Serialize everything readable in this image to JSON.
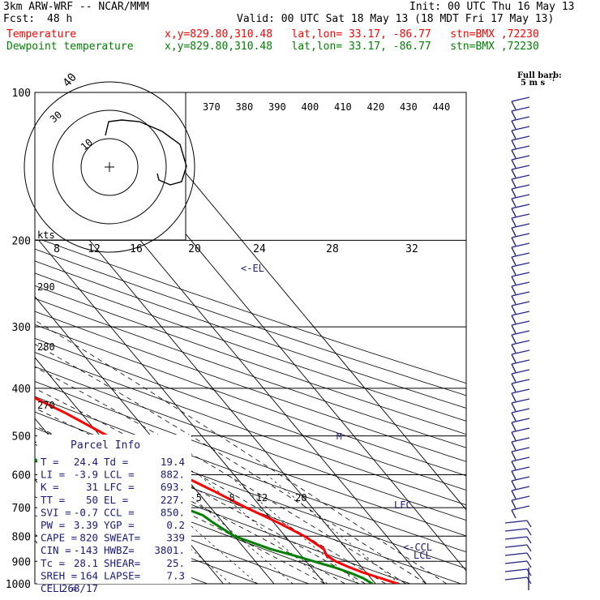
{
  "header": {
    "model": "3km ARW-WRF -- NCAR/MMM",
    "init": "Init: 00 UTC Thu 16 May 13",
    "fcst_label": "Fcst:",
    "fcst_value": "48 h",
    "valid": "Valid: 00 UTC Sat 18 May 13 (18 MDT Fri 17 May 13)",
    "temp_label": "Temperature",
    "temp_loc": "x,y=829.80,310.48   lat,lon= 33.17, -86.77   stn=BMX ,72230",
    "dew_label": "Dewpoint temperature",
    "dew_loc": "x,y=829.80,310.48   lat,lon= 33.17, -86.77   stn=BMX ,72230",
    "colors": {
      "temp": "#ff0000",
      "dew": "#008000",
      "text": "#000000",
      "navy": "#1a1a7a"
    }
  },
  "chart_data": {
    "type": "skewt",
    "pressure_levels": [
      "100",
      "200",
      "300",
      "400",
      "500",
      "600",
      "700",
      "800",
      "900",
      "1000"
    ],
    "temp_ticks": [
      "-80",
      "-70",
      "-60",
      "-50",
      "-40",
      "-30",
      "-20",
      "-10",
      "0",
      "10",
      "20",
      "30",
      "40"
    ],
    "theta_labels": [
      "370",
      "380",
      "390",
      "400",
      "410",
      "420",
      "430",
      "440"
    ],
    "left_theta_labels": [
      "290",
      "280",
      "270"
    ],
    "mixing_ratio_labels": [
      "2",
      "3",
      "5",
      "8",
      "12",
      "20"
    ],
    "hodograph": {
      "kts_label": "kts",
      "speed_ticks": [
        "8",
        "12",
        "16",
        "20",
        "24",
        "28",
        "32"
      ],
      "ring_labels": [
        "10",
        "30"
      ]
    },
    "temperature": [
      {
        "p": 1000,
        "t": 24.4
      },
      {
        "p": 975,
        "t": 22.0
      },
      {
        "p": 950,
        "t": 19.5
      },
      {
        "p": 925,
        "t": 17.5
      },
      {
        "p": 900,
        "t": 15.8
      },
      {
        "p": 875,
        "t": 15.0
      },
      {
        "p": 850,
        "t": 15.5
      },
      {
        "p": 800,
        "t": 13.8
      },
      {
        "p": 750,
        "t": 10.8
      },
      {
        "p": 700,
        "t": 7.0
      },
      {
        "p": 650,
        "t": 3.5
      },
      {
        "p": 600,
        "t": -0.5
      },
      {
        "p": 550,
        "t": -4.5
      },
      {
        "p": 500,
        "t": -8.5
      },
      {
        "p": 450,
        "t": -13.0
      },
      {
        "p": 400,
        "t": -19.0
      },
      {
        "p": 350,
        "t": -26.0
      },
      {
        "p": 300,
        "t": -35.0
      },
      {
        "p": 250,
        "t": -46.0
      },
      {
        "p": 200,
        "t": -58.0
      },
      {
        "p": 175,
        "t": -63.0
      },
      {
        "p": 150,
        "t": -65.0
      },
      {
        "p": 125,
        "t": -64.0
      },
      {
        "p": 100,
        "t": -64.0
      }
    ],
    "dewpoint": [
      {
        "p": 1000,
        "t": 19.4
      },
      {
        "p": 975,
        "t": 18.5
      },
      {
        "p": 950,
        "t": 16.8
      },
      {
        "p": 925,
        "t": 14.5
      },
      {
        "p": 900,
        "t": 11.5
      },
      {
        "p": 875,
        "t": 8.5
      },
      {
        "p": 850,
        "t": 5.0
      },
      {
        "p": 800,
        "t": 0.0
      },
      {
        "p": 775,
        "t": -1.0
      },
      {
        "p": 750,
        "t": -2.0
      },
      {
        "p": 725,
        "t": -2.8
      },
      {
        "p": 700,
        "t": -5.5
      },
      {
        "p": 650,
        "t": -16.0
      },
      {
        "p": 600,
        "t": -25.0
      },
      {
        "p": 550,
        "t": -27.0
      },
      {
        "p": 500,
        "t": -30.0
      },
      {
        "p": 450,
        "t": -32.0
      },
      {
        "p": 400,
        "t": -38.0
      },
      {
        "p": 360,
        "t": -50.0
      },
      {
        "p": 330,
        "t": -54.0
      },
      {
        "p": 300,
        "t": -58.5
      },
      {
        "p": 260,
        "t": -64.0
      },
      {
        "p": 220,
        "t": -70.0
      },
      {
        "p": 200,
        "t": -73.0
      },
      {
        "p": 175,
        "t": -76.0
      },
      {
        "p": 150,
        "t": -81.0
      },
      {
        "p": 125,
        "t": -83.0
      },
      {
        "p": 100,
        "t": -89.0
      }
    ],
    "markers": [
      {
        "label": "<-EL",
        "p": 227
      },
      {
        "label": "LFC",
        "p": 693
      },
      {
        "label": "<-CCL",
        "p": 850
      },
      {
        "label": "LCL",
        "p": 882
      }
    ],
    "parcel_title": "Parcel Info",
    "parcel_info": [
      [
        "T  =",
        "24.4",
        "Td =",
        "19.4"
      ],
      [
        "LI =",
        "-3.9",
        "LCL =",
        "882."
      ],
      [
        "K  =",
        "31",
        "LFC =",
        "693."
      ],
      [
        "TT =",
        "50",
        "EL =",
        "227."
      ],
      [
        "SVI =",
        "-0.7",
        "CCL =",
        "850."
      ],
      [
        "PW =",
        "3.39",
        "YGP =",
        "0.2"
      ],
      [
        "CAPE =",
        "820",
        "SWEAT=",
        "339"
      ],
      [
        "CIN =",
        "-143",
        "HWBZ=",
        "3801."
      ],
      [
        "Tc =",
        "28.1",
        "SHEAR=",
        "25."
      ],
      [
        "SREH =",
        "164",
        "LAPSE=",
        "7.3"
      ],
      [
        "CELL =",
        "268/17",
        "",
        ""
      ]
    ],
    "barb_legend_line1": "Full barb:",
    "barb_legend_line2": "5 m s"
  }
}
